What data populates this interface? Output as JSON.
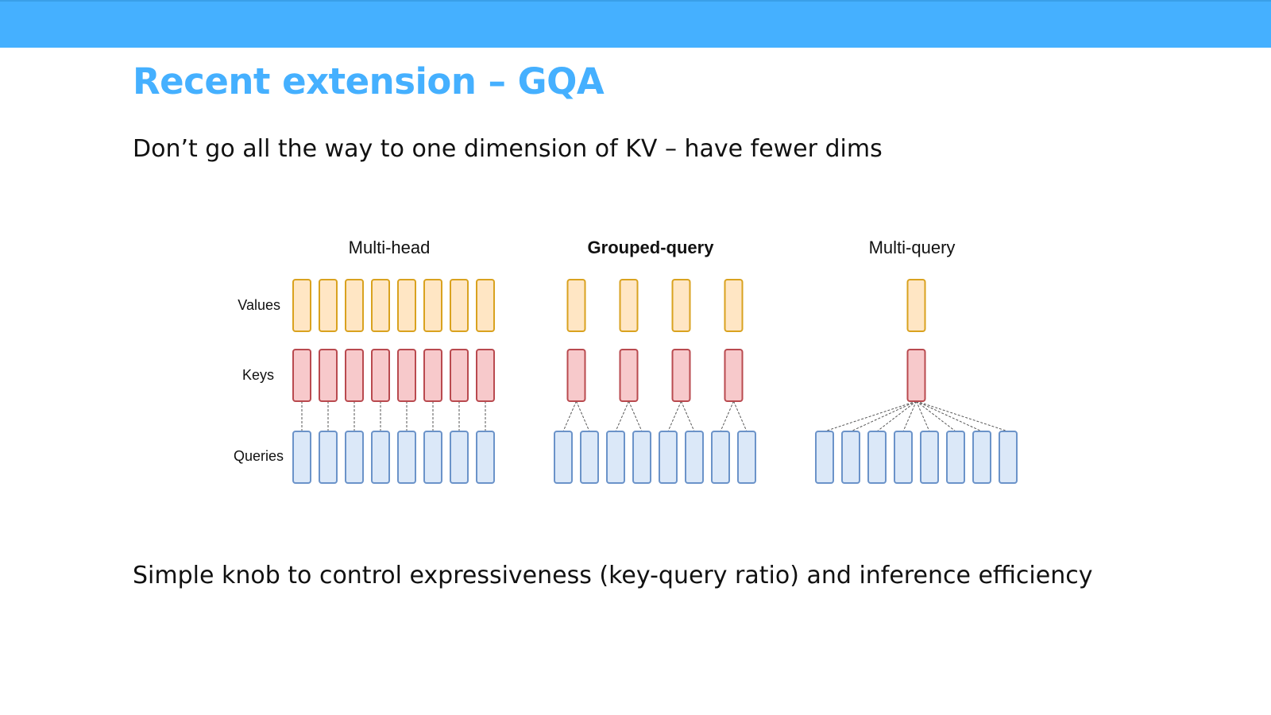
{
  "slide": {
    "title": "Recent extension – GQA",
    "subtitle": "Don’t go all the way to one dimension of KV – have fewer dims",
    "footer": "Simple knob to control expressiveness (key-query ratio) and inference efficiency"
  },
  "diagram": {
    "row_labels": {
      "values": "Values",
      "keys": "Keys",
      "queries": "Queries"
    },
    "variants": [
      {
        "name": "Multi-head",
        "bold": false,
        "queries": 8,
        "kv_heads": 8
      },
      {
        "name": "Grouped-query",
        "bold": true,
        "queries": 8,
        "kv_heads": 4
      },
      {
        "name": "Multi-query",
        "bold": false,
        "queries": 8,
        "kv_heads": 1
      }
    ],
    "colors": {
      "values_fill": "#ffe6c4",
      "values_stroke": "#d9a21f",
      "keys_fill": "#f7c9cb",
      "keys_stroke": "#b94a4f",
      "queries_fill": "#dbe8f8",
      "queries_stroke": "#6b93c9",
      "connector": "#555555"
    }
  }
}
